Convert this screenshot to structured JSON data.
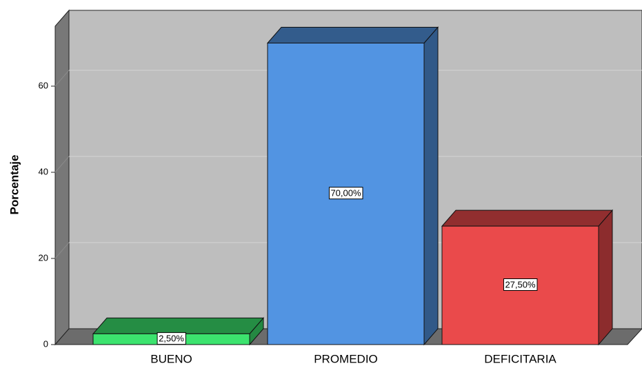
{
  "chart_data": {
    "type": "bar3d",
    "ylabel": "Porcentaje",
    "categories": [
      "BUENO",
      "PROMEDIO",
      "DEFICITARIA"
    ],
    "values": [
      2.5,
      70,
      27.5
    ],
    "value_labels": [
      "2,50%",
      "70,00%",
      "27,50%"
    ],
    "colors": [
      "#3ce36e",
      "#5294e2",
      "#ea4a4b"
    ],
    "ylim": [
      0,
      74
    ],
    "yticks": [
      0,
      20,
      40,
      60
    ],
    "grid": true
  }
}
